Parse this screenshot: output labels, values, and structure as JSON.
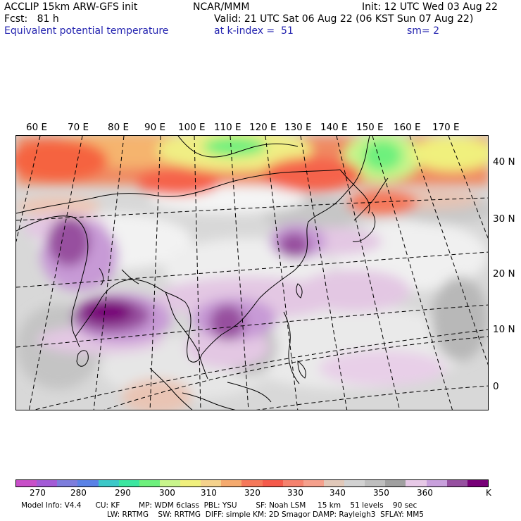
{
  "header": {
    "line1_left": "ACCLIP 15km ARW-GFS init",
    "line1_center": "NCAR/MMM",
    "line1_right": "Init: 12 UTC Wed 03 Aug 22",
    "line2_left": "Fcst:   81 h",
    "line2_right": "Valid: 21 UTC Sat 06 Aug 22 (06 KST Sun 07 Aug 22)",
    "line3_left": "Equivalent potential temperature",
    "line3_center": "at k-index =  51",
    "line3_right": "sm= 2"
  },
  "map": {
    "lon_labels": [
      "60 E",
      "70 E",
      "80 E",
      "90 E",
      "100 E",
      "110 E",
      "120 E",
      "130 E",
      "140 E",
      "150 E",
      "160 E",
      "170 E"
    ],
    "lat_labels": [
      "40 N",
      "30 N",
      "20 N",
      "10 N",
      "0"
    ]
  },
  "colorbar": {
    "colors": [
      "#c84fc8",
      "#a35bd6",
      "#7d7ddc",
      "#5a82e6",
      "#3cc8c8",
      "#3ce6a0",
      "#6ef07d",
      "#c8f58c",
      "#f0f07d",
      "#f5d28c",
      "#f5aa6e",
      "#f5785a",
      "#f55a4b",
      "#f5826e",
      "#f5a08c",
      "#e1c8b9",
      "#d2d2d2",
      "#bebebe",
      "#a0a0a0",
      "#e6c8e6",
      "#c8a0dc",
      "#9650a0",
      "#780078"
    ],
    "labels": [
      "270",
      "280",
      "290",
      "300",
      "310",
      "320",
      "330",
      "340",
      "350",
      "360"
    ],
    "unit": "K"
  },
  "footer": {
    "line1": "Model Info: V4.4      CU: KF        MP: WDM 6class  PBL: YSU        SF: Noah LSM     15 km    51 levels    90 sec",
    "line2": "LW: RRTMG    SW: RRTMG  DIFF: simple KM: 2D Smagor DAMP: Rayleigh3  SFLAY: MM5"
  }
}
